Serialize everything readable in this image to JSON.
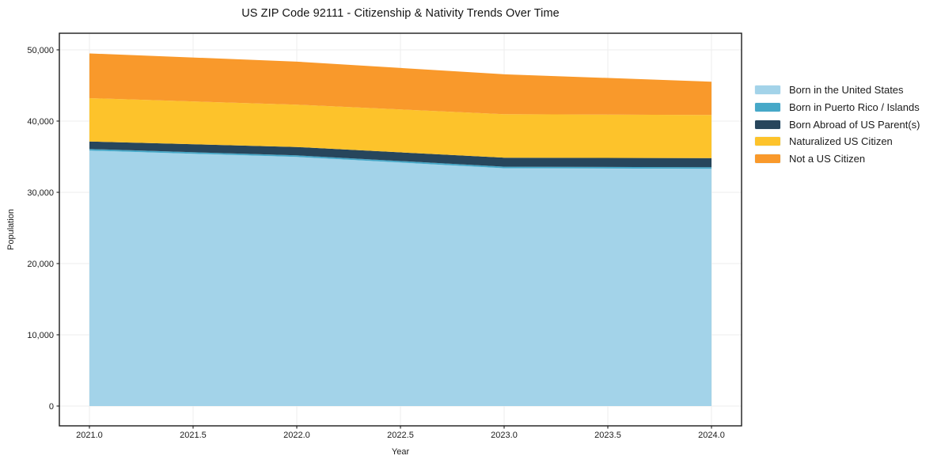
{
  "title": "US ZIP Code 92111 - Citizenship & Nativity Trends Over Time",
  "chart_data": {
    "type": "area",
    "stacked": true,
    "x": [
      2021,
      2022,
      2023,
      2024
    ],
    "series": [
      {
        "name": "Born in the United States",
        "color": "#A3D3E9",
        "values": [
          35860,
          34970,
          33380,
          33300
        ]
      },
      {
        "name": "Born in Puerto Rico / Islands",
        "color": "#46A8C8",
        "values": [
          220,
          220,
          220,
          220
        ]
      },
      {
        "name": "Born Abroad of US Parent(s)",
        "color": "#27465C",
        "values": [
          1060,
          1170,
          1260,
          1280
        ]
      },
      {
        "name": "Naturalized US Citizen",
        "color": "#FDC32B",
        "values": [
          6080,
          5940,
          6110,
          6060
        ]
      },
      {
        "name": "Not a US Citizen",
        "color": "#F9992B",
        "values": [
          6280,
          6050,
          5600,
          4670
        ]
      }
    ],
    "totals": [
      49500,
      48350,
      46570,
      45530
    ],
    "xlabel": "Year",
    "ylabel": "Population",
    "xticks": [
      2021.0,
      2021.5,
      2022.0,
      2022.5,
      2023.0,
      2023.5,
      2024.0
    ],
    "xtick_labels": [
      "2021.0",
      "2021.5",
      "2022.0",
      "2022.5",
      "2023.0",
      "2023.5",
      "2024.0"
    ],
    "yticks": [
      0,
      10000,
      20000,
      30000,
      40000,
      50000
    ],
    "ytick_labels": [
      "0",
      "10,000",
      "20,000",
      "30,000",
      "40,000",
      "50,000"
    ],
    "xlim": [
      2020.855,
      2024.145
    ],
    "ylim": [
      -2780,
      52330
    ],
    "grid": true,
    "legend_position": "center-right"
  },
  "colors": {
    "background": "#ffffff",
    "grid": "#ededed",
    "spine": "#1b1b1b",
    "text": "#1b1b1b"
  }
}
